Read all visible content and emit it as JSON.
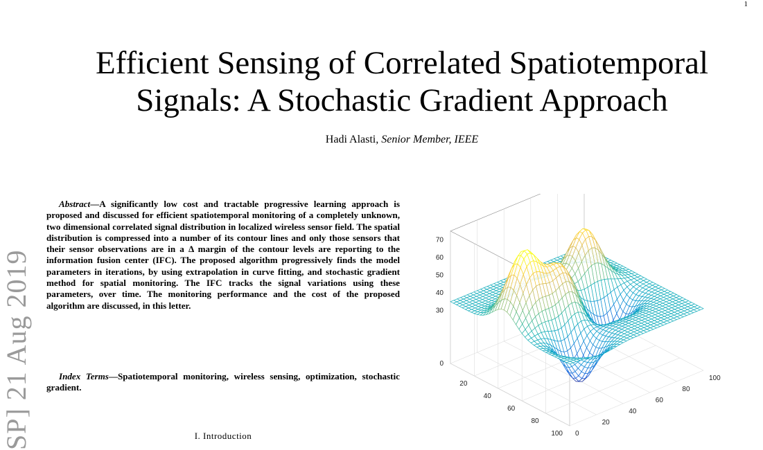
{
  "page_number": "1",
  "paper": {
    "title_line1": "Efficient Sensing of Correlated Spatiotemporal",
    "title_line2": "Signals: A Stochastic Gradient Approach",
    "author_name": "Hadi Alasti,",
    "author_role": "Senior Member, IEEE",
    "arxiv_stamp": "SP]  21 Aug 2019",
    "abstract_lead": "Abstract",
    "abstract_body": "A significantly low cost and tractable progressive learning approach is proposed and discussed for efficient spatiotemporal monitoring of a completely unknown, two dimensional correlated signal distribution in localized wireless sensor field. The spatial distribution is compressed into a number of its contour lines and only those sensors that their sensor observations are in a Δ margin of the contour levels are reporting to the information fusion center (IFC). The proposed algorithm progressively finds the model parameters in iterations, by using extrapolation in curve fitting, and stochastic gradient method for spatial monitoring. The IFC tracks the signal variations using these parameters, over time. The monitoring performance and the cost of the proposed algorithm are discussed, in this letter.",
    "index_terms_lead": "Index Terms",
    "index_terms_body": "Spatiotemporal monitoring, wireless sensing, optimization, stochastic gradient.",
    "section_heading": "I. Introduction"
  },
  "chart_data": {
    "type": "surface",
    "xlim": [
      0,
      100
    ],
    "ylim": [
      0,
      100
    ],
    "zlim": [
      0,
      75
    ],
    "x_ticks": [
      "0",
      "20",
      "40",
      "60",
      "80",
      "100"
    ],
    "y_ticks": [
      "0",
      "20",
      "40",
      "60",
      "80",
      "100"
    ],
    "z_ticks": [
      "0",
      "30",
      "40",
      "50",
      "60",
      "70"
    ],
    "grid": true,
    "colormap": "parula",
    "peaks": [
      {
        "x": 35,
        "y": 70,
        "z": 68
      },
      {
        "x": 52,
        "y": 38,
        "z": 62
      },
      {
        "x": 45,
        "y": 15,
        "z": 74
      },
      {
        "x": 30,
        "y": 40,
        "z": 46
      }
    ],
    "valleys": [
      {
        "x": 55,
        "y": 70,
        "z": 10
      },
      {
        "x": 80,
        "y": 25,
        "z": 10
      },
      {
        "x": 60,
        "y": 50,
        "z": 25
      }
    ]
  }
}
